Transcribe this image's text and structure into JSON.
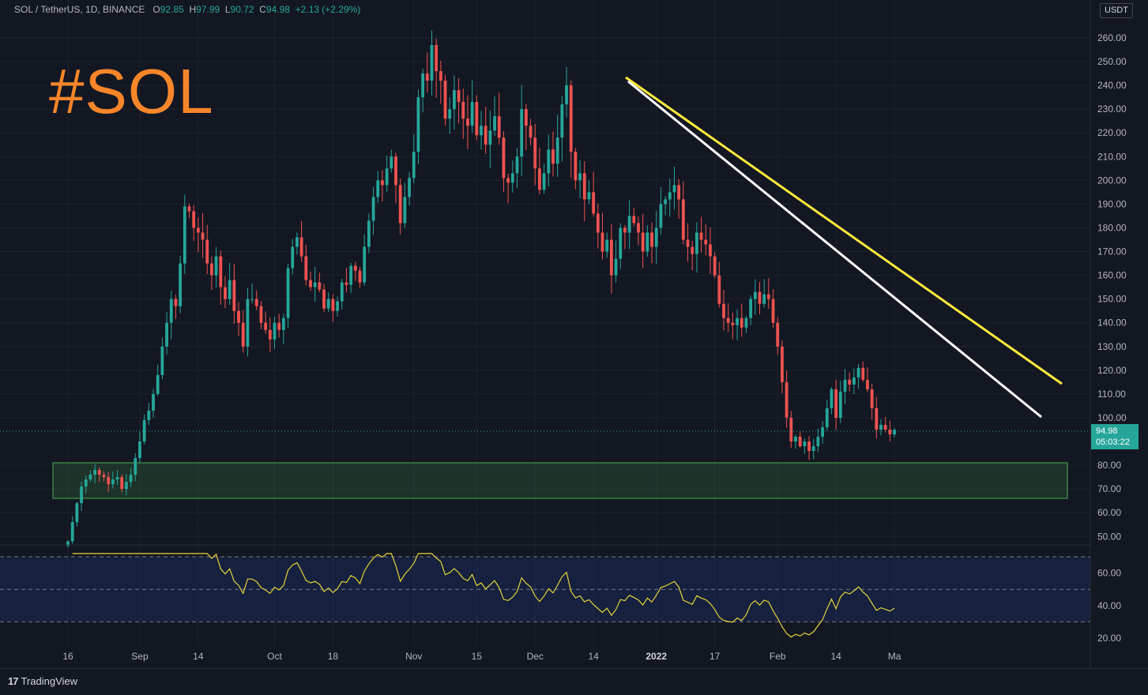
{
  "header": {
    "symbol": "SOL / TetherUS, 1D, BINANCE",
    "o_label": "O",
    "o_value": "92.85",
    "h_label": "H",
    "h_value": "97.99",
    "l_label": "L",
    "l_value": "90.72",
    "c_label": "C",
    "c_value": "94.98",
    "change": "+2.13 (+2.29%)"
  },
  "overlay_text": "#SOL",
  "currency": "USDT",
  "last_price": {
    "price": "94.98",
    "countdown": "05:03:22"
  },
  "footer": {
    "logo_mark": "17",
    "logo_text": "TradingView"
  },
  "colors": {
    "up": "#26a69a",
    "down": "#ef5350",
    "title": "#f7862a",
    "trend_yellow": "#ffeb3b",
    "trend_white": "#ffffff",
    "support_zone": "#4caf50",
    "rsi_line": "#e6d13a",
    "rsi_band": "#2962ff"
  },
  "chart_data": [
    {
      "type": "candlestick",
      "title": "SOL / TetherUS, 1D, BINANCE",
      "ylim": [
        45,
        265
      ],
      "y_ticks": [
        "50.00",
        "60.00",
        "70.00",
        "80.00",
        "100.00",
        "110.00",
        "120.00",
        "130.00",
        "140.00",
        "150.00",
        "160.00",
        "170.00",
        "180.00",
        "190.00",
        "200.00",
        "210.00",
        "220.00",
        "230.00",
        "240.00",
        "250.00",
        "260.00"
      ],
      "x_ticks": [
        "16",
        "Sep",
        "14",
        "Oct",
        "18",
        "Nov",
        "15",
        "Dec",
        "14",
        "2022",
        "17",
        "Feb",
        "14",
        "Ma"
      ],
      "x_tick_days": [
        0,
        16,
        29,
        46,
        59,
        77,
        91,
        104,
        117,
        131,
        144,
        158,
        171,
        184
      ],
      "start_date": "2021-08-16",
      "closes": [
        48,
        56,
        64,
        71,
        74,
        76,
        78,
        76,
        75,
        72,
        74,
        75,
        70,
        73,
        76,
        83,
        90,
        99,
        103,
        110,
        118,
        130,
        140,
        150,
        147,
        165,
        189,
        187,
        180,
        178,
        175,
        165,
        160,
        168,
        155,
        150,
        158,
        145,
        140,
        130,
        150,
        150,
        147,
        140,
        137,
        133,
        140,
        137,
        142,
        163,
        172,
        176,
        168,
        158,
        155,
        157,
        154,
        146,
        150,
        145,
        149,
        157,
        156,
        164,
        162,
        157,
        172,
        183,
        193,
        200,
        198,
        205,
        210,
        198,
        182,
        193,
        201,
        212,
        235,
        245,
        242,
        257,
        246,
        242,
        226,
        230,
        238,
        233,
        226,
        223,
        233,
        219,
        223,
        215,
        221,
        227,
        218,
        201,
        199,
        203,
        210,
        230,
        223,
        218,
        205,
        196,
        203,
        213,
        207,
        218,
        232,
        240,
        212,
        200,
        203,
        192,
        195,
        186,
        178,
        170,
        175,
        160,
        167,
        180,
        178,
        185,
        182,
        178,
        170,
        178,
        172,
        180,
        190,
        192,
        195,
        198,
        192,
        175,
        172,
        169,
        178,
        175,
        173,
        168,
        160,
        148,
        142,
        140,
        139,
        142,
        138,
        142,
        150,
        153,
        148,
        152,
        150,
        140,
        130,
        115,
        100,
        90,
        92,
        88,
        90,
        86,
        88,
        92,
        96,
        104,
        112,
        100,
        111,
        116,
        114,
        117,
        121,
        116,
        112,
        104,
        95,
        97,
        95,
        93,
        94.98
      ]
    },
    {
      "type": "line",
      "title": "RSI",
      "ylim": [
        10,
        75
      ],
      "y_ticks": [
        "20.00",
        "40.00",
        "60.00"
      ],
      "overbought": 70,
      "oversold": 30
    }
  ]
}
